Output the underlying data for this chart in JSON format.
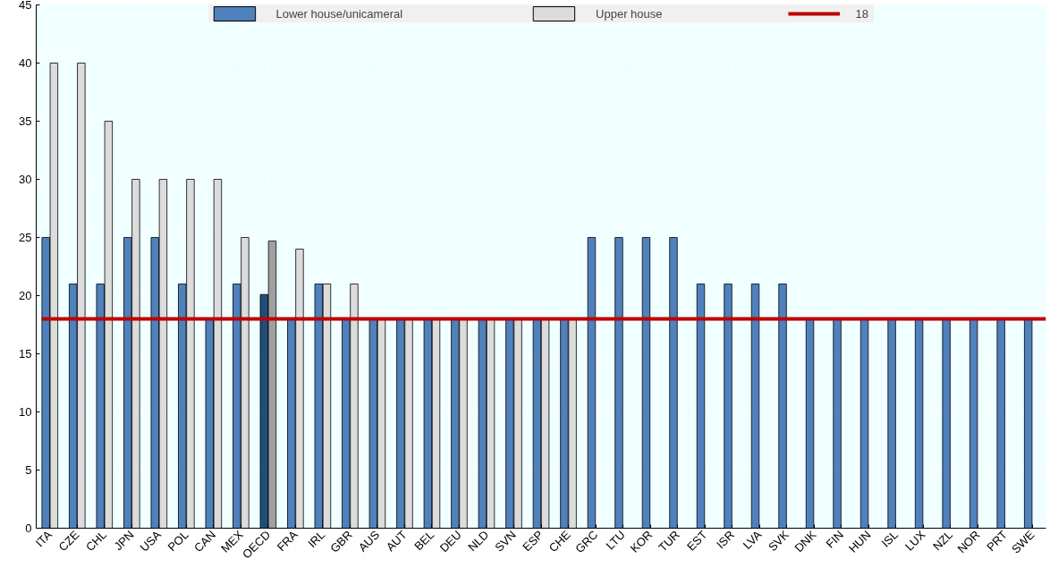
{
  "chart_data": {
    "type": "bar",
    "categories": [
      "ITA",
      "CZE",
      "CHL",
      "JPN",
      "USA",
      "POL",
      "CAN",
      "MEX",
      "OECD",
      "FRA",
      "IRL",
      "GBR",
      "AUS",
      "AUT",
      "BEL",
      "DEU",
      "NLD",
      "SVN",
      "ESP",
      "CHE",
      "GRC",
      "LTU",
      "KOR",
      "TUR",
      "EST",
      "ISR",
      "LVA",
      "SVK",
      "DNK",
      "FIN",
      "HUN",
      "ISL",
      "LUX",
      "NZL",
      "NOR",
      "PRT",
      "SWE"
    ],
    "series": [
      {
        "name": "Lower house/unicameral",
        "color": "#4f81bd",
        "colors": [
          "#4f81bd",
          "#4f81bd",
          "#4f81bd",
          "#4f81bd",
          "#4f81bd",
          "#4f81bd",
          "#4f81bd",
          "#4f81bd",
          "#1f4e79",
          "#4f81bd",
          "#4f81bd",
          "#4f81bd",
          "#4f81bd",
          "#4f81bd",
          "#4f81bd",
          "#4f81bd",
          "#4f81bd",
          "#4f81bd",
          "#4f81bd",
          "#4f81bd",
          "#4f81bd",
          "#4f81bd",
          "#4f81bd",
          "#4f81bd",
          "#4f81bd",
          "#4f81bd",
          "#4f81bd",
          "#4f81bd",
          "#4f81bd",
          "#4f81bd",
          "#4f81bd",
          "#4f81bd",
          "#4f81bd",
          "#4f81bd",
          "#4f81bd",
          "#4f81bd",
          "#4f81bd"
        ],
        "values": [
          25,
          21,
          21,
          25,
          25,
          21,
          18,
          21,
          20.1,
          18,
          21,
          18,
          18,
          18,
          18,
          18,
          18,
          18,
          18,
          18,
          25,
          25,
          25,
          25,
          21,
          21,
          21,
          21,
          18,
          18,
          18,
          18,
          18,
          18,
          18,
          18,
          18
        ]
      },
      {
        "name": "Upper house",
        "color": "#dcdcdc",
        "colors": [
          "#dcdcdc",
          "#dcdcdc",
          "#dcdcdc",
          "#dcdcdc",
          "#dcdcdc",
          "#dcdcdc",
          "#dcdcdc",
          "#dcdcdc",
          "#a0a0a0",
          "#dcdcdc",
          "#dcdcdc",
          "#dcdcdc",
          "#dcdcdc",
          "#dcdcdc",
          "#dcdcdc",
          "#dcdcdc",
          "#dcdcdc",
          "#dcdcdc",
          "#dcdcdc",
          "#dcdcdc",
          "#dcdcdc",
          "#dcdcdc",
          "#dcdcdc",
          "#dcdcdc",
          "#dcdcdc",
          "#dcdcdc",
          "#dcdcdc",
          "#dcdcdc",
          "#dcdcdc",
          "#dcdcdc",
          "#dcdcdc",
          "#dcdcdc",
          "#dcdcdc",
          "#dcdcdc",
          "#dcdcdc",
          "#dcdcdc",
          "#dcdcdc"
        ],
        "values": [
          40,
          40,
          35,
          30,
          30,
          30,
          30,
          25,
          24.7,
          24,
          21,
          21,
          18,
          18,
          18,
          18,
          18,
          18,
          18,
          18,
          null,
          null,
          null,
          null,
          null,
          null,
          null,
          null,
          null,
          null,
          null,
          null,
          null,
          null,
          null,
          null,
          null
        ]
      }
    ],
    "ref_lines": [
      {
        "axis": "y",
        "value": 18,
        "label": "18",
        "color": "#c00000"
      }
    ],
    "ylim": [
      0,
      45
    ],
    "yticks": [
      0,
      5,
      10,
      15,
      20,
      25,
      30,
      35,
      40,
      45
    ],
    "grid": true,
    "legend": "top"
  }
}
